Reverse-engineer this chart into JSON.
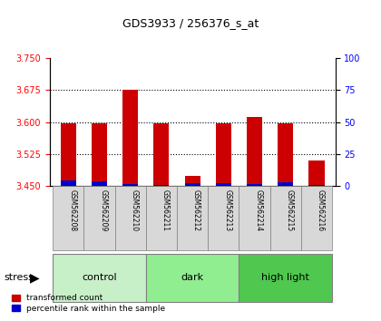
{
  "title": "GDS3933 / 256376_s_at",
  "samples": [
    "GSM562208",
    "GSM562209",
    "GSM562210",
    "GSM562211",
    "GSM562212",
    "GSM562213",
    "GSM562214",
    "GSM562215",
    "GSM562216"
  ],
  "red_values": [
    3.597,
    3.597,
    3.675,
    3.597,
    3.473,
    3.597,
    3.612,
    3.597,
    3.51
  ],
  "blue_values": [
    3.463,
    3.462,
    3.455,
    3.452,
    3.457,
    3.458,
    3.455,
    3.46,
    3.452
  ],
  "base": 3.45,
  "ylim_left": [
    3.45,
    3.75
  ],
  "ylim_right": [
    0,
    100
  ],
  "yticks_left": [
    3.45,
    3.525,
    3.6,
    3.675,
    3.75
  ],
  "yticks_right": [
    0,
    25,
    50,
    75,
    100
  ],
  "groups": [
    {
      "label": "control",
      "start": 0,
      "end": 3,
      "color": "#c8f0c8"
    },
    {
      "label": "dark",
      "start": 3,
      "end": 6,
      "color": "#90ee90"
    },
    {
      "label": "high light",
      "start": 6,
      "end": 9,
      "color": "#50c850"
    }
  ],
  "bar_width": 0.5,
  "red_color": "#cc0000",
  "blue_color": "#0000cc",
  "grid_color": "black",
  "bg_plot": "white",
  "bg_label": "#d0d0d0",
  "stress_arrow_label": "stress",
  "legend_red": "transformed count",
  "legend_blue": "percentile rank within the sample"
}
